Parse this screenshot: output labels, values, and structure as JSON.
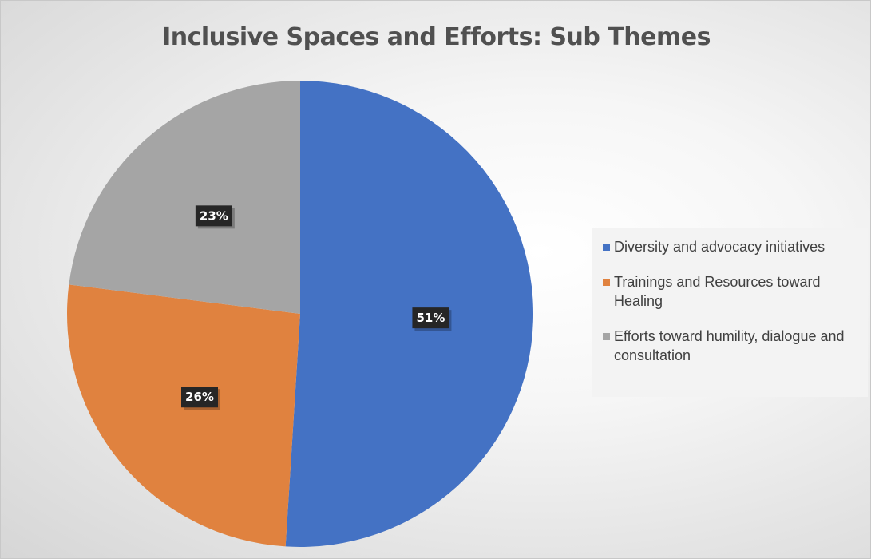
{
  "chart_data": {
    "type": "pie",
    "title": "Inclusive Spaces and Efforts: Sub Themes",
    "categories": [
      "Diversity and advocacy initiatives",
      "Trainings and Resources toward Healing",
      "Efforts toward humility, dialogue and consultation"
    ],
    "values": [
      51,
      26,
      23
    ],
    "labels": [
      "51%",
      "26%",
      "23%"
    ],
    "colors": [
      "#4472C4",
      "#E0823F",
      "#A5A5A5"
    ],
    "legend_position": "right"
  }
}
